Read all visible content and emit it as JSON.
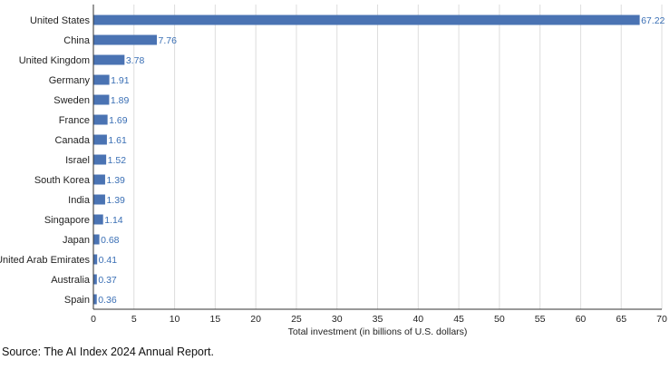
{
  "chart_data": {
    "type": "bar",
    "orientation": "horizontal",
    "categories": [
      "United States",
      "China",
      "United Kingdom",
      "Germany",
      "Sweden",
      "France",
      "Canada",
      "Israel",
      "South Korea",
      "India",
      "Singapore",
      "Japan",
      "United Arab Emirates",
      "Australia",
      "Spain"
    ],
    "values": [
      67.22,
      7.76,
      3.78,
      1.91,
      1.89,
      1.69,
      1.61,
      1.52,
      1.39,
      1.39,
      1.14,
      0.68,
      0.41,
      0.37,
      0.36
    ],
    "value_labels": [
      "67.22",
      "7.76",
      "3.78",
      "1.91",
      "1.89",
      "1.69",
      "1.61",
      "1.52",
      "1.39",
      "1.39",
      "1.14",
      "0.68",
      "0.41",
      "0.37",
      "0.36"
    ],
    "xlabel": "Total investment (in billions of U.S. dollars)",
    "ylabel": "",
    "xlim": [
      0,
      70
    ],
    "xticks": [
      0,
      5,
      10,
      15,
      20,
      25,
      30,
      35,
      40,
      45,
      50,
      55,
      60,
      65,
      70
    ],
    "grid": "vertical",
    "legend": "none",
    "bar_color": "#4a73b3",
    "value_label_color": "#3a6fb5",
    "grid_color": "#dddddd"
  },
  "source": "Source: The AI Index 2024 Annual Report."
}
